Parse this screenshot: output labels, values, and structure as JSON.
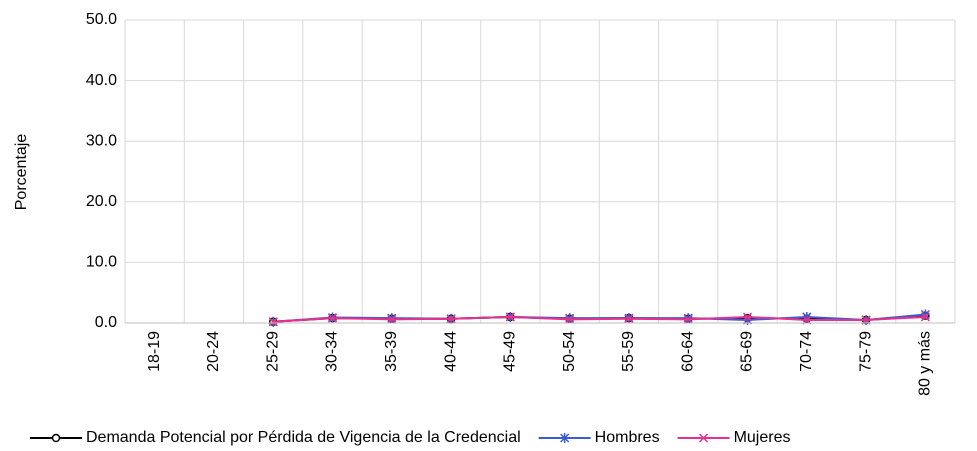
{
  "chart_data": {
    "type": "line",
    "y_label": "Porcentaje",
    "categories": [
      "18-19",
      "20-24",
      "25-29",
      "30-34",
      "35-39",
      "40-44",
      "45-49",
      "50-54",
      "55-59",
      "60-64",
      "65-69",
      "70-74",
      "75-79",
      "80 y más"
    ],
    "series": [
      {
        "name": "Demanda Potencial por Pérdida de Vigencia de la Credencial",
        "color": "#000000",
        "marker": "circle",
        "values": [
          null,
          null,
          0.2,
          0.8,
          0.7,
          0.7,
          1.0,
          0.7,
          0.8,
          0.7,
          0.8,
          0.7,
          0.5,
          1.2
        ]
      },
      {
        "name": "Hombres",
        "color": "#3a5bd1",
        "marker": "asterisk",
        "values": [
          null,
          null,
          0.2,
          0.9,
          0.8,
          0.7,
          1.0,
          0.8,
          0.8,
          0.8,
          0.5,
          1.0,
          0.5,
          1.4
        ]
      },
      {
        "name": "Mujeres",
        "color": "#e8318c",
        "marker": "x",
        "values": [
          null,
          null,
          0.2,
          0.8,
          0.6,
          0.7,
          1.0,
          0.6,
          0.7,
          0.6,
          1.0,
          0.5,
          0.5,
          1.0
        ]
      }
    ],
    "ylim": [
      0,
      50
    ],
    "yticks": [
      {
        "value": 0,
        "label": "0.0"
      },
      {
        "value": 10,
        "label": "10.0"
      },
      {
        "value": 20,
        "label": "20.0"
      },
      {
        "value": 30,
        "label": "30.0"
      },
      {
        "value": 40,
        "label": "40.0"
      },
      {
        "value": 50,
        "label": "50.0"
      }
    ],
    "grid": true,
    "legend": "bottom"
  }
}
